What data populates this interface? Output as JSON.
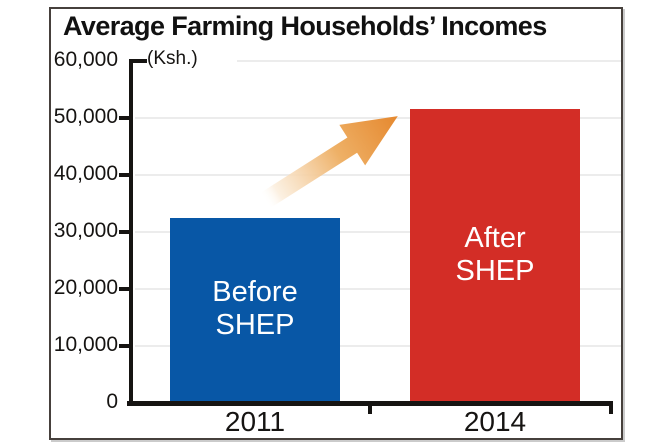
{
  "colors": {
    "before_bar": "#0857a6",
    "after_bar": "#d32d26",
    "arrow_tail": "#ffffff",
    "arrow_mid": "#f3cf9f",
    "arrow_head": "#e5872d",
    "gridline": "#ececec",
    "axis": "#161412",
    "frame_border": "#46403c"
  },
  "chart_data": {
    "type": "bar",
    "title": "Average Farming Households’ Incomes",
    "ylabel": "(Ksh.)",
    "categories": [
      "2011",
      "2014"
    ],
    "values": [
      32500,
      51500
    ],
    "bar_labels": [
      [
        "Before",
        "SHEP"
      ],
      [
        "After",
        "SHEP"
      ]
    ],
    "bar_colors": [
      "#0857a6",
      "#d32d26"
    ],
    "ylim": [
      0,
      60000
    ],
    "yticks": [
      0,
      10000,
      20000,
      30000,
      40000,
      50000,
      60000
    ],
    "ytick_labels": [
      "0",
      "10,000",
      "20,000",
      "30,000",
      "40,000",
      "50,000",
      "60,000"
    ],
    "grid": true,
    "legend": "none",
    "annotation": "orange gradient arrow rising from Before-SHEP bar toward After-SHEP bar"
  }
}
